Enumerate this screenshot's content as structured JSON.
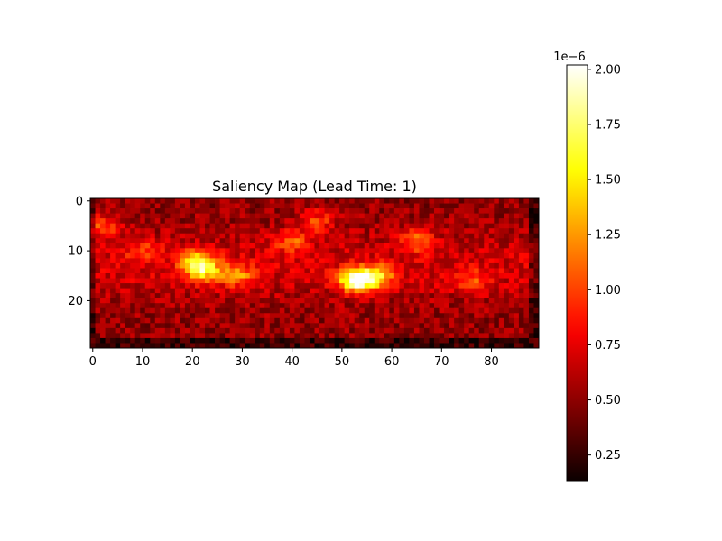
{
  "chart_data": {
    "type": "heatmap",
    "title": "Saliency Map (Lead Time: 1)",
    "xlabel": "",
    "ylabel": "",
    "rows": 30,
    "cols": 90,
    "xlim": [
      -0.5,
      89.5
    ],
    "ylim": [
      29.5,
      -0.5
    ],
    "x_ticks": [
      0,
      10,
      20,
      30,
      40,
      50,
      60,
      70,
      80
    ],
    "y_ticks": [
      0,
      10,
      20
    ],
    "colormap": "hot",
    "colorbar": {
      "vmin": 0.13,
      "vmax": 2.02,
      "ticks": [
        0.25,
        0.5,
        0.75,
        1.0,
        1.25,
        1.5,
        1.75,
        2.0
      ],
      "tick_labels": [
        "0.25",
        "0.50",
        "0.75",
        "1.00",
        "1.25",
        "1.50",
        "1.75",
        "2.00"
      ],
      "offset_text": "1e−6"
    },
    "hotspots": [
      {
        "row": 14,
        "col": 22,
        "value": 1.45
      },
      {
        "row": 12,
        "col": 21,
        "value": 1.3
      },
      {
        "row": 15,
        "col": 29,
        "value": 1.2
      },
      {
        "row": 16,
        "col": 53,
        "value": 2.0
      },
      {
        "row": 15,
        "col": 57,
        "value": 1.35
      },
      {
        "row": 8,
        "col": 40,
        "value": 1.1
      },
      {
        "row": 4,
        "col": 45,
        "value": 1.05
      },
      {
        "row": 8,
        "col": 65,
        "value": 1.15
      },
      {
        "row": 16,
        "col": 76,
        "value": 1.0
      },
      {
        "row": 5,
        "col": 2,
        "value": 1.1
      },
      {
        "row": 10,
        "col": 10,
        "value": 0.95
      }
    ]
  }
}
